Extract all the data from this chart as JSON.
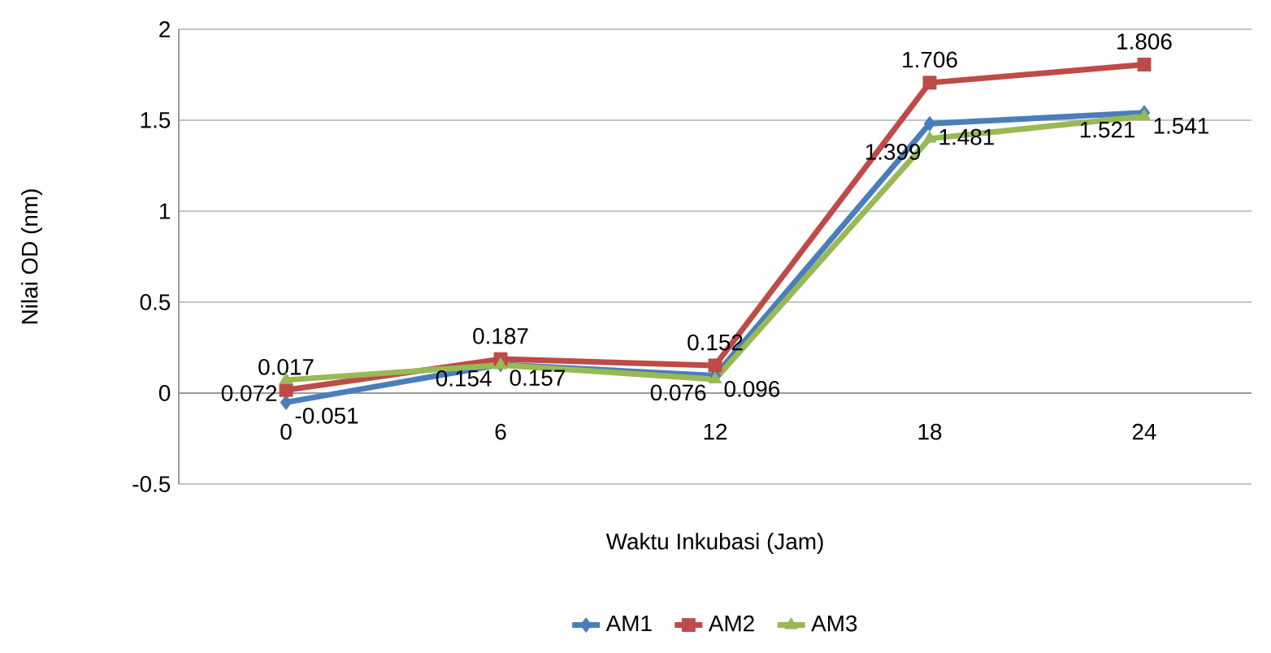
{
  "chart_data": {
    "type": "line",
    "xlabel": "Waktu Inkubasi (Jam)",
    "ylabel": "Nilai OD (nm)",
    "categories": [
      "0",
      "6",
      "12",
      "18",
      "24"
    ],
    "series": [
      {
        "name": "AM1",
        "color": "#4a7ebb",
        "marker": "diamond",
        "values": [
          -0.051,
          0.157,
          0.096,
          1.481,
          1.541
        ]
      },
      {
        "name": "AM2",
        "color": "#be4b48",
        "marker": "square",
        "values": [
          0.017,
          0.187,
          0.152,
          1.706,
          1.806
        ]
      },
      {
        "name": "AM3",
        "color": "#98b954",
        "marker": "triangle",
        "values": [
          0.072,
          0.154,
          0.076,
          1.399,
          1.521
        ]
      }
    ],
    "ylim": [
      -0.5,
      2
    ],
    "yticks": [
      -0.5,
      0,
      0.5,
      1,
      1.5,
      2
    ],
    "grid": "y",
    "legend": "bottom",
    "data_labels": true,
    "line_style": "solid"
  }
}
